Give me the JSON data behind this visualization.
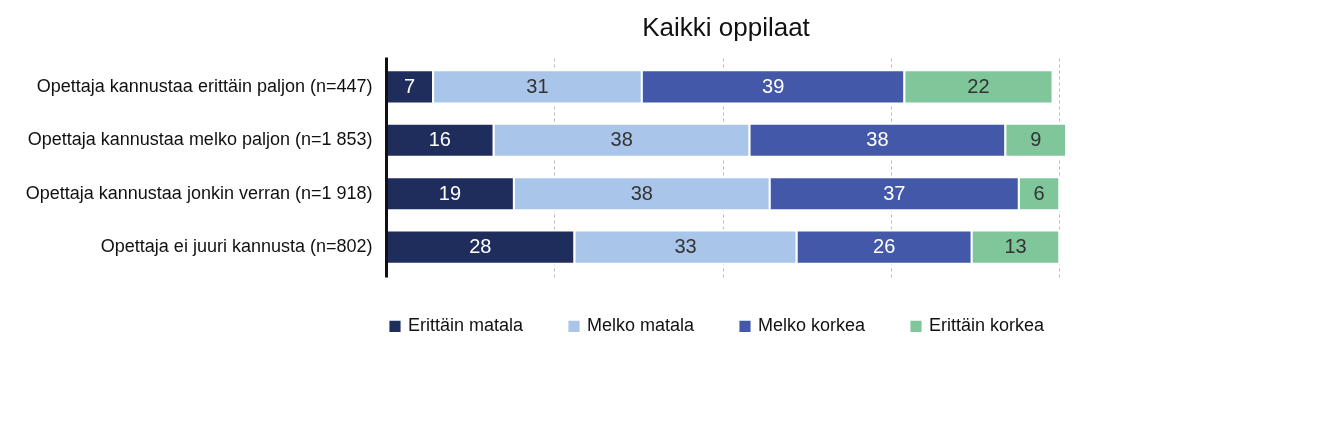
{
  "chart_data": {
    "type": "bar",
    "orientation": "horizontal",
    "stacked": true,
    "title": "Kaikki oppilaat",
    "categories": [
      "Opettaja kannustaa erittäin paljon (n=447)",
      "Opettaja kannustaa melko paljon (n=1 853)",
      "Opettaja kannustaa jonkin verran (n=1 918)",
      "Opettaja ei juuri kannusta (n=802)"
    ],
    "series": [
      {
        "name": "Erittäin matala",
        "color": "#1f2d5c",
        "values": [
          7,
          16,
          19,
          28
        ]
      },
      {
        "name": "Melko matala",
        "color": "#a9c6ea",
        "values": [
          31,
          38,
          38,
          33
        ]
      },
      {
        "name": "Melko korkea",
        "color": "#4358a8",
        "values": [
          39,
          38,
          37,
          26
        ]
      },
      {
        "name": "Erittäin korkea",
        "color": "#7fc79a",
        "values": [
          22,
          9,
          6,
          13
        ]
      }
    ],
    "xlim": [
      0,
      101
    ],
    "xticks": [
      0,
      25,
      50,
      75,
      100
    ],
    "tick_labels": "y",
    "grid": "x",
    "legend": "bottom",
    "data_labels": true
  }
}
